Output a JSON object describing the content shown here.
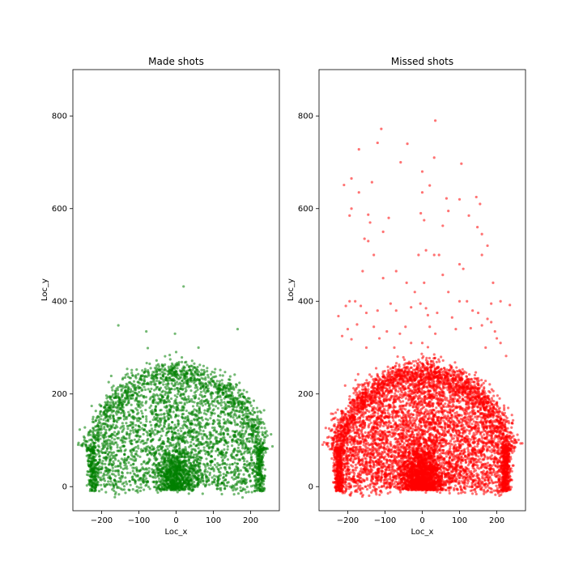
{
  "chart_data": [
    {
      "type": "scatter",
      "title": "Made shots",
      "xlabel": "Loc_x",
      "ylabel": "Loc_y",
      "xlim": [
        -277,
        277
      ],
      "ylim": [
        -52,
        900
      ],
      "xticks": [
        -200,
        -100,
        0,
        100,
        200
      ],
      "yticks": [
        0,
        200,
        400,
        600,
        800
      ],
      "color": "#008000",
      "grid": false,
      "outliers": [
        {
          "x": 20,
          "y": 432
        },
        {
          "x": -155,
          "y": 348
        },
        {
          "x": -80,
          "y": 335
        },
        {
          "x": 165,
          "y": 340
        },
        {
          "x": -3,
          "y": 330
        },
        {
          "x": 60,
          "y": 300
        }
      ]
    },
    {
      "type": "scatter",
      "title": "Missed shots",
      "xlabel": "Loc_x",
      "ylabel": "Loc_y",
      "xlim": [
        -277,
        277
      ],
      "ylim": [
        -52,
        900
      ],
      "xticks": [
        -200,
        -100,
        0,
        100,
        200
      ],
      "yticks": [
        0,
        200,
        400,
        600,
        800
      ],
      "color": "#ff0000",
      "grid": false,
      "outliers": [
        {
          "x": 35,
          "y": 790
        },
        {
          "x": -110,
          "y": 772
        },
        {
          "x": -170,
          "y": 728
        },
        {
          "x": -120,
          "y": 742
        },
        {
          "x": -40,
          "y": 740
        },
        {
          "x": 105,
          "y": 697
        },
        {
          "x": -58,
          "y": 700
        },
        {
          "x": 32,
          "y": 710
        },
        {
          "x": -190,
          "y": 665
        },
        {
          "x": -210,
          "y": 651
        },
        {
          "x": -170,
          "y": 635
        },
        {
          "x": 0,
          "y": 680
        },
        {
          "x": 20,
          "y": 650
        },
        {
          "x": -135,
          "y": 657
        },
        {
          "x": 0,
          "y": 635
        },
        {
          "x": 65,
          "y": 622
        },
        {
          "x": 100,
          "y": 620
        },
        {
          "x": 145,
          "y": 625
        },
        {
          "x": 155,
          "y": 610
        },
        {
          "x": -190,
          "y": 600
        },
        {
          "x": -195,
          "y": 585
        },
        {
          "x": -145,
          "y": 587
        },
        {
          "x": -140,
          "y": 570
        },
        {
          "x": 70,
          "y": 595
        },
        {
          "x": 125,
          "y": 585
        },
        {
          "x": -4,
          "y": 590
        },
        {
          "x": 5,
          "y": 575
        },
        {
          "x": -90,
          "y": 580
        },
        {
          "x": 55,
          "y": 563
        },
        {
          "x": 148,
          "y": 560
        },
        {
          "x": -105,
          "y": 550
        },
        {
          "x": -155,
          "y": 535
        },
        {
          "x": -145,
          "y": 530
        },
        {
          "x": 160,
          "y": 545
        },
        {
          "x": 175,
          "y": 520
        },
        {
          "x": 10,
          "y": 510
        },
        {
          "x": -10,
          "y": 500
        },
        {
          "x": 32,
          "y": 500
        },
        {
          "x": 45,
          "y": 500
        },
        {
          "x": -130,
          "y": 500
        },
        {
          "x": -160,
          "y": 465
        },
        {
          "x": 100,
          "y": 480
        },
        {
          "x": 160,
          "y": 500
        },
        {
          "x": 110,
          "y": 470
        },
        {
          "x": -70,
          "y": 465
        },
        {
          "x": -105,
          "y": 450
        },
        {
          "x": -42,
          "y": 440
        },
        {
          "x": 5,
          "y": 440
        },
        {
          "x": 55,
          "y": 457
        },
        {
          "x": 190,
          "y": 440
        },
        {
          "x": -20,
          "y": 420
        },
        {
          "x": 70,
          "y": 420
        },
        {
          "x": -180,
          "y": 400
        },
        {
          "x": -195,
          "y": 400
        },
        {
          "x": -205,
          "y": 390
        },
        {
          "x": -165,
          "y": 390
        },
        {
          "x": -150,
          "y": 375
        },
        {
          "x": -120,
          "y": 380
        },
        {
          "x": -85,
          "y": 395
        },
        {
          "x": -70,
          "y": 380
        },
        {
          "x": -30,
          "y": 387
        },
        {
          "x": 10,
          "y": 385
        },
        {
          "x": 15,
          "y": 370
        },
        {
          "x": 40,
          "y": 375
        },
        {
          "x": 80,
          "y": 365
        },
        {
          "x": 100,
          "y": 400
        },
        {
          "x": 120,
          "y": 400
        },
        {
          "x": 135,
          "y": 380
        },
        {
          "x": 150,
          "y": 375
        },
        {
          "x": 175,
          "y": 362
        },
        {
          "x": 185,
          "y": 395
        },
        {
          "x": 210,
          "y": 400
        },
        {
          "x": 235,
          "y": 392
        },
        {
          "x": -225,
          "y": 368
        },
        {
          "x": -215,
          "y": 325
        },
        {
          "x": -200,
          "y": 340
        },
        {
          "x": -190,
          "y": 318
        },
        {
          "x": -130,
          "y": 345
        },
        {
          "x": -115,
          "y": 320
        },
        {
          "x": -95,
          "y": 335
        },
        {
          "x": -60,
          "y": 330
        },
        {
          "x": -45,
          "y": 345
        },
        {
          "x": 20,
          "y": 345
        },
        {
          "x": 35,
          "y": 330
        },
        {
          "x": 90,
          "y": 340
        },
        {
          "x": 130,
          "y": 342
        },
        {
          "x": 160,
          "y": 348
        },
        {
          "x": 185,
          "y": 355
        },
        {
          "x": 195,
          "y": 335
        },
        {
          "x": 210,
          "y": 310
        },
        {
          "x": 225,
          "y": 282
        },
        {
          "x": -175,
          "y": 350
        },
        {
          "x": -150,
          "y": 300
        },
        {
          "x": -75,
          "y": 300
        },
        {
          "x": -30,
          "y": 310
        },
        {
          "x": 0,
          "y": 310
        },
        {
          "x": 170,
          "y": 300
        },
        {
          "x": 200,
          "y": 320
        },
        {
          "x": -5,
          "y": 395
        }
      ]
    }
  ]
}
